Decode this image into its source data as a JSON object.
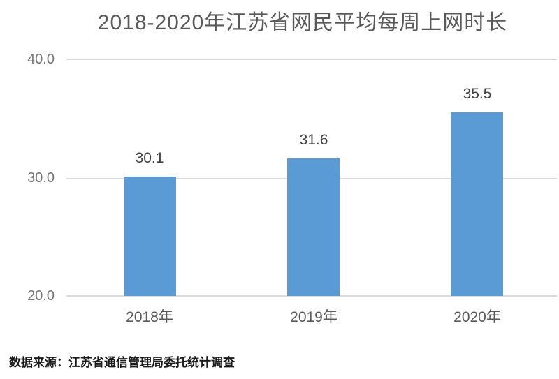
{
  "source": "数据来源：江苏省通信管理局委托统计调查",
  "colors": {
    "background": "#ffffff",
    "bar": "#5b9bd5",
    "title_text": "#595959",
    "tick_text": "#757575",
    "xtick_text": "#595959",
    "value_text": "#404040",
    "gridline": "#d9d9d9",
    "source_text": "#1a1a1a"
  },
  "chart_data": {
    "type": "bar",
    "title": "2018-2020年江苏省网民平均每周上网时长",
    "categories": [
      "2018年",
      "2019年",
      "2020年"
    ],
    "values": [
      30.1,
      31.6,
      35.5
    ],
    "value_labels": [
      "30.1",
      "31.6",
      "35.5"
    ],
    "xlabel": "",
    "ylabel": "",
    "ylim": [
      20,
      40
    ],
    "yticks": [
      20,
      30,
      40
    ],
    "ytick_labels": [
      "20.0",
      "30.0",
      "40.0"
    ],
    "grid": true,
    "legend": false,
    "series_color": "#5b9bd5"
  }
}
